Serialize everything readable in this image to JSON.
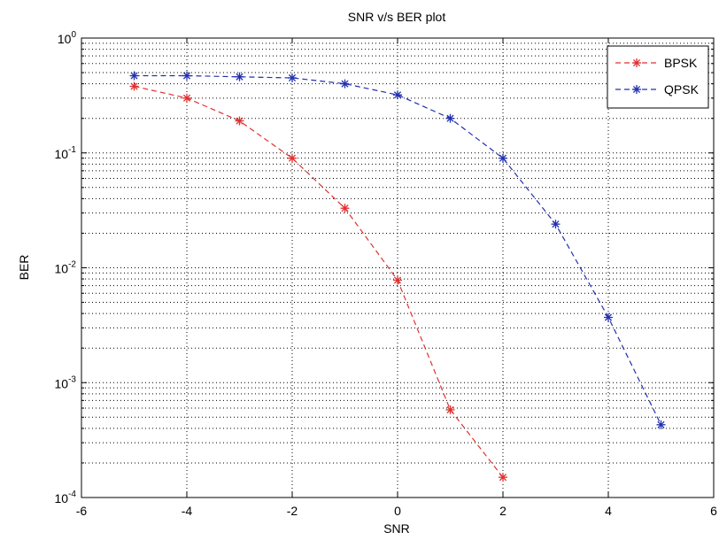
{
  "chart_data": {
    "type": "line",
    "title": "SNR v/s BER plot",
    "xlabel": "SNR",
    "ylabel": "BER",
    "xlim": [
      -6,
      6
    ],
    "ylim": [
      0.0001,
      1
    ],
    "yscale": "log",
    "grid": true,
    "legend_position": "top-right",
    "x_ticks": [
      -6,
      -4,
      -2,
      0,
      2,
      4,
      6
    ],
    "x_tick_labels": [
      "-6",
      "-4",
      "-2",
      "0",
      "2",
      "4",
      "6"
    ],
    "y_ticks": [
      {
        "value": 1,
        "base": "10",
        "exp": "0"
      },
      {
        "value": 0.1,
        "base": "10",
        "exp": "-1"
      },
      {
        "value": 0.01,
        "base": "10",
        "exp": "-2"
      },
      {
        "value": 0.001,
        "base": "10",
        "exp": "-3"
      },
      {
        "value": 0.0001,
        "base": "10",
        "exp": "-4"
      }
    ],
    "series": [
      {
        "name": "BPSK",
        "color": "#e03030",
        "x": [
          -5,
          -4,
          -3,
          -2,
          -1,
          0,
          1,
          2
        ],
        "y": [
          0.38,
          0.3,
          0.19,
          0.09,
          0.033,
          0.0078,
          0.00058,
          0.00015
        ]
      },
      {
        "name": "QPSK",
        "color": "#2030b0",
        "x": [
          -5,
          -4,
          -3,
          -2,
          -1,
          0,
          1,
          2,
          3,
          4,
          5
        ],
        "y": [
          0.47,
          0.47,
          0.46,
          0.45,
          0.4,
          0.32,
          0.2,
          0.09,
          0.024,
          0.0037,
          0.00043
        ]
      }
    ]
  }
}
